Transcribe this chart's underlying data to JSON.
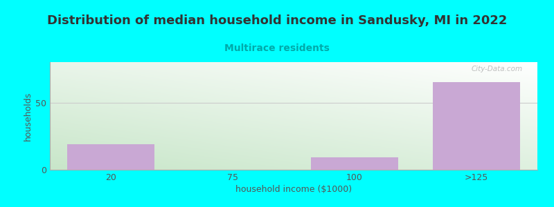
{
  "title": "Distribution of median household income in Sandusky, MI in 2022",
  "subtitle": "Multirace residents",
  "xlabel": "household income ($1000)",
  "ylabel": "households",
  "bar_categories": [
    "20",
    "75",
    "100",
    ">125"
  ],
  "bar_values": [
    19,
    0,
    9,
    65
  ],
  "bar_color": "#c9a8d4",
  "xlim": [
    0,
    4
  ],
  "ylim": [
    0,
    80
  ],
  "yticks": [
    0,
    50
  ],
  "xtick_positions": [
    0.5,
    1.5,
    2.5,
    3.5
  ],
  "background_color": "#00ffff",
  "plot_bg_gradient_topleft": "#e8f5e9",
  "plot_bg_gradient_topright": "#f8f8ff",
  "plot_bg_gradient_bottom": "#c8e6c9",
  "grid_color": "#cccccc",
  "title_color": "#333333",
  "subtitle_color": "#00aaaa",
  "axis_label_color": "#555555",
  "tick_label_color": "#555555",
  "watermark": "City-Data.com",
  "title_fontsize": 13,
  "subtitle_fontsize": 10,
  "label_fontsize": 9
}
